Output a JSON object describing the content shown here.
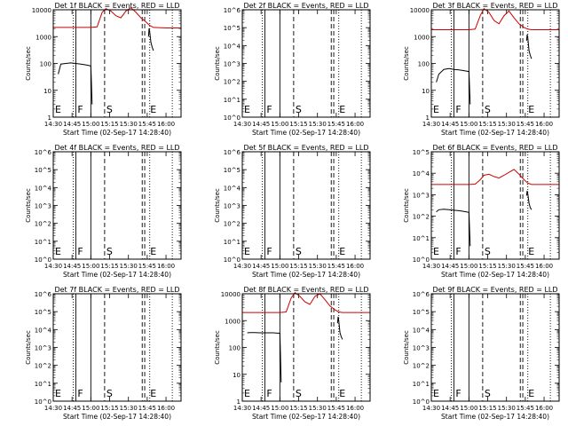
{
  "chart_data": [
    {
      "type": "line",
      "title": "Det 1f BLACK = Events, RED = LLD",
      "xlabel": "Start Time (02-Sep-17 14:28:40)",
      "ylabel": "Counts/sec",
      "xlim": [
        "14:30",
        "16:12"
      ],
      "ylim": [
        1,
        10000
      ],
      "yscale": "log",
      "x_ticks": [
        "14:30",
        "14:45",
        "15:00",
        "15:15",
        "15:30",
        "15:45",
        "16:00"
      ],
      "y_ticks": [
        "1",
        "10",
        "100",
        "1000",
        "10000"
      ],
      "series": [
        {
          "color": "#000000",
          "x": [
            "14:34",
            "14:36",
            "14:40",
            "14:44",
            "14:48",
            "14:52",
            "14:55",
            "14:58",
            "15:00",
            "15:01",
            "15:46",
            "15:46.5",
            "15:47",
            "15:48",
            "15:49",
            "15:50"
          ],
          "y": [
            40,
            95,
            100,
            105,
            100,
            95,
            90,
            85,
            80,
            3,
            1000,
            2000,
            1500,
            600,
            400,
            300
          ]
        },
        {
          "color": "#cc0000",
          "x": [
            "14:30",
            "14:45",
            "15:00",
            "15:05",
            "15:09",
            "15:12",
            "15:16",
            "15:20",
            "15:24",
            "15:28",
            "15:32",
            "15:36",
            "15:40",
            "15:44",
            "15:47",
            "15:50",
            "16:00",
            "16:12"
          ],
          "y": [
            2200,
            2200,
            2200,
            2300,
            8000,
            11000,
            9000,
            6000,
            5000,
            9000,
            12000,
            8000,
            5000,
            3500,
            2600,
            2200,
            2100,
            2100
          ]
        }
      ],
      "annotations": [
        {
          "text": "E",
          "x": "14:30"
        },
        {
          "text": "F",
          "x": "14:48"
        },
        {
          "text": "S",
          "x": "15:11"
        },
        {
          "text": "E",
          "x": "15:46"
        }
      ]
    },
    {
      "type": "line",
      "title": "Det 2f BLACK = Events, RED = LLD",
      "xlabel": "Start Time (02-Sep-17 14:28:40)",
      "ylabel": "Counts/sec",
      "xlim": [
        "14:30",
        "16:12"
      ],
      "ylim": [
        1,
        1000000
      ],
      "yscale": "log",
      "x_ticks": [
        "14:30",
        "14:45",
        "15:00",
        "15:15",
        "15:30",
        "15:45",
        "16:00"
      ],
      "y_ticks": [
        "10^0",
        "10^1",
        "10^2",
        "10^3",
        "10^4",
        "10^5",
        "10^6"
      ],
      "series": [],
      "annotations": [
        {
          "text": "E",
          "x": "14:30"
        },
        {
          "text": "F",
          "x": "14:48"
        },
        {
          "text": "S",
          "x": "15:11"
        },
        {
          "text": "E",
          "x": "15:46"
        }
      ]
    },
    {
      "type": "line",
      "title": "Det 3f BLACK = Events, RED = LLD",
      "xlabel": "Start Time (02-Sep-17 14:28:40)",
      "ylabel": "Counts/sec",
      "xlim": [
        "14:30",
        "16:12"
      ],
      "ylim": [
        1,
        10000
      ],
      "yscale": "log",
      "x_ticks": [
        "14:30",
        "14:45",
        "15:00",
        "15:15",
        "15:30",
        "15:45",
        "16:00"
      ],
      "y_ticks": [
        "1",
        "10",
        "100",
        "1000",
        "10000"
      ],
      "series": [
        {
          "color": "#000000",
          "x": [
            "14:34",
            "14:36",
            "14:40",
            "14:44",
            "14:48",
            "14:52",
            "14:55",
            "14:58",
            "15:00",
            "15:01",
            "15:46",
            "15:46.5",
            "15:47",
            "15:48",
            "15:49",
            "15:50"
          ],
          "y": [
            20,
            40,
            60,
            65,
            60,
            58,
            55,
            52,
            50,
            3,
            700,
            1200,
            900,
            300,
            200,
            150
          ]
        },
        {
          "color": "#cc0000",
          "x": [
            "14:30",
            "14:45",
            "15:00",
            "15:05",
            "15:09",
            "15:12",
            "15:16",
            "15:20",
            "15:24",
            "15:28",
            "15:32",
            "15:36",
            "15:40",
            "15:44",
            "15:47",
            "15:50",
            "16:00",
            "16:12"
          ],
          "y": [
            1800,
            1800,
            1800,
            1900,
            6000,
            11000,
            8000,
            4000,
            3000,
            6000,
            9000,
            5000,
            3000,
            2200,
            1900,
            1800,
            1800,
            1800
          ]
        }
      ],
      "annotations": [
        {
          "text": "E",
          "x": "14:30"
        },
        {
          "text": "F",
          "x": "14:48"
        },
        {
          "text": "S",
          "x": "15:11"
        },
        {
          "text": "E",
          "x": "15:46"
        }
      ]
    },
    {
      "type": "line",
      "title": "Det 4f BLACK = Events, RED = LLD",
      "xlabel": "Start Time (02-Sep-17 14:28:40)",
      "ylabel": "Counts/sec",
      "xlim": [
        "14:30",
        "16:12"
      ],
      "ylim": [
        1,
        1000000
      ],
      "yscale": "log",
      "x_ticks": [
        "14:30",
        "14:45",
        "15:00",
        "15:15",
        "15:30",
        "15:45",
        "16:00"
      ],
      "y_ticks": [
        "10^0",
        "10^1",
        "10^2",
        "10^3",
        "10^4",
        "10^5",
        "10^6"
      ],
      "series": [],
      "annotations": [
        {
          "text": "E",
          "x": "14:30"
        },
        {
          "text": "F",
          "x": "14:48"
        },
        {
          "text": "S",
          "x": "15:11"
        },
        {
          "text": "E",
          "x": "15:46"
        }
      ]
    },
    {
      "type": "line",
      "title": "Det 5f BLACK = Events, RED = LLD",
      "xlabel": "Start Time (02-Sep-17 14:28:40)",
      "ylabel": "Counts/sec",
      "xlim": [
        "14:30",
        "16:12"
      ],
      "ylim": [
        1,
        1000000
      ],
      "yscale": "log",
      "x_ticks": [
        "14:30",
        "14:45",
        "15:00",
        "15:15",
        "15:30",
        "15:45",
        "16:00"
      ],
      "y_ticks": [
        "10^0",
        "10^1",
        "10^2",
        "10^3",
        "10^4",
        "10^5",
        "10^6"
      ],
      "series": [],
      "annotations": [
        {
          "text": "E",
          "x": "14:30"
        },
        {
          "text": "F",
          "x": "14:48"
        },
        {
          "text": "S",
          "x": "15:11"
        },
        {
          "text": "E",
          "x": "15:46"
        }
      ]
    },
    {
      "type": "line",
      "title": "Det 6f BLACK = Events, RED = LLD",
      "xlabel": "Start Time (02-Sep-17 14:28:40)",
      "ylabel": "Counts/sec",
      "xlim": [
        "14:30",
        "16:12"
      ],
      "ylim": [
        1,
        100000
      ],
      "yscale": "log",
      "x_ticks": [
        "14:30",
        "14:45",
        "15:00",
        "15:15",
        "15:30",
        "15:45",
        "16:00"
      ],
      "y_ticks": [
        "10^0",
        "10^1",
        "10^2",
        "10^3",
        "10^4",
        "10^5"
      ],
      "series": [
        {
          "color": "#000000",
          "x": [
            "14:34",
            "14:36",
            "14:40",
            "14:44",
            "14:48",
            "14:52",
            "14:55",
            "14:58",
            "15:00",
            "15:01",
            "15:46",
            "15:46.5",
            "15:47",
            "15:48",
            "15:49",
            "15:50"
          ],
          "y": [
            160,
            200,
            210,
            200,
            190,
            180,
            170,
            160,
            150,
            4,
            900,
            1500,
            1100,
            400,
            250,
            200
          ]
        },
        {
          "color": "#cc0000",
          "x": [
            "14:30",
            "14:45",
            "15:00",
            "15:05",
            "15:09",
            "15:12",
            "15:16",
            "15:20",
            "15:24",
            "15:28",
            "15:32",
            "15:36",
            "15:40",
            "15:44",
            "15:47",
            "15:50",
            "16:00",
            "16:12"
          ],
          "y": [
            3000,
            3000,
            3000,
            3100,
            5000,
            8000,
            9000,
            7000,
            6000,
            8000,
            11000,
            15000,
            9000,
            5000,
            3500,
            3000,
            3000,
            3000
          ]
        }
      ],
      "annotations": [
        {
          "text": "E",
          "x": "14:30"
        },
        {
          "text": "F",
          "x": "14:48"
        },
        {
          "text": "S",
          "x": "15:11"
        },
        {
          "text": "E",
          "x": "15:46"
        }
      ]
    },
    {
      "type": "line",
      "title": "Det 7f BLACK = Events, RED = LLD",
      "xlabel": "Start Time (02-Sep-17 14:28:40)",
      "ylabel": "Counts/sec",
      "xlim": [
        "14:30",
        "16:12"
      ],
      "ylim": [
        1,
        1000000
      ],
      "yscale": "log",
      "x_ticks": [
        "14:30",
        "14:45",
        "15:00",
        "15:15",
        "15:30",
        "15:45",
        "16:00"
      ],
      "y_ticks": [
        "10^0",
        "10^1",
        "10^2",
        "10^3",
        "10^4",
        "10^5",
        "10^6"
      ],
      "series": [],
      "annotations": [
        {
          "text": "E",
          "x": "14:30"
        },
        {
          "text": "F",
          "x": "14:48"
        },
        {
          "text": "S",
          "x": "15:11"
        },
        {
          "text": "E",
          "x": "15:46"
        }
      ]
    },
    {
      "type": "line",
      "title": "Det 8f BLACK = Events, RED = LLD",
      "xlabel": "Start Time (02-Sep-17 14:28:40)",
      "ylabel": "Counts/sec",
      "xlim": [
        "14:30",
        "16:12"
      ],
      "ylim": [
        1,
        10000
      ],
      "yscale": "log",
      "x_ticks": [
        "14:30",
        "14:45",
        "15:00",
        "15:15",
        "15:30",
        "15:45",
        "16:00"
      ],
      "y_ticks": [
        "1",
        "10",
        "100",
        "1000",
        "10000"
      ],
      "series": [
        {
          "color": "#000000",
          "x": [
            "14:34",
            "14:36",
            "14:40",
            "14:44",
            "14:48",
            "14:52",
            "14:55",
            "14:58",
            "15:00",
            "15:01",
            "15:46",
            "15:46.5",
            "15:47",
            "15:48",
            "15:49",
            "15:50"
          ],
          "y": [
            350,
            360,
            360,
            350,
            350,
            350,
            350,
            340,
            340,
            5,
            800,
            1400,
            1000,
            350,
            250,
            200
          ]
        },
        {
          "color": "#cc0000",
          "x": [
            "14:30",
            "14:45",
            "15:00",
            "15:05",
            "15:09",
            "15:12",
            "15:16",
            "15:20",
            "15:24",
            "15:28",
            "15:32",
            "15:36",
            "15:40",
            "15:44",
            "15:47",
            "15:50",
            "16:00",
            "16:12"
          ],
          "y": [
            2000,
            2000,
            2000,
            2100,
            7000,
            11000,
            8000,
            5000,
            4000,
            8000,
            10000,
            6000,
            3500,
            2500,
            2100,
            2000,
            2000,
            2000
          ]
        }
      ],
      "annotations": [
        {
          "text": "E",
          "x": "14:30"
        },
        {
          "text": "F",
          "x": "14:48"
        },
        {
          "text": "S",
          "x": "15:11"
        },
        {
          "text": "E",
          "x": "15:46"
        }
      ]
    },
    {
      "type": "line",
      "title": "Det 9f BLACK = Events, RED = LLD",
      "xlabel": "Start Time (02-Sep-17 14:28:40)",
      "ylabel": "Counts/sec",
      "xlim": [
        "14:30",
        "16:12"
      ],
      "ylim": [
        1,
        1000000
      ],
      "yscale": "log",
      "x_ticks": [
        "14:30",
        "14:45",
        "15:00",
        "15:15",
        "15:30",
        "15:45",
        "16:00"
      ],
      "y_ticks": [
        "10^0",
        "10^1",
        "10^2",
        "10^3",
        "10^4",
        "10^5",
        "10^6"
      ],
      "series": [],
      "annotations": [
        {
          "text": "E",
          "x": "14:30"
        },
        {
          "text": "F",
          "x": "14:48"
        },
        {
          "text": "S",
          "x": "15:11"
        },
        {
          "text": "E",
          "x": "15:46"
        }
      ]
    }
  ],
  "markers": {
    "solid": [
      "14:48",
      "15:00"
    ],
    "dashed": [
      "15:11",
      "15:41",
      "15:43"
    ],
    "dotted": [
      "14:46",
      "15:47",
      "16:05"
    ]
  }
}
